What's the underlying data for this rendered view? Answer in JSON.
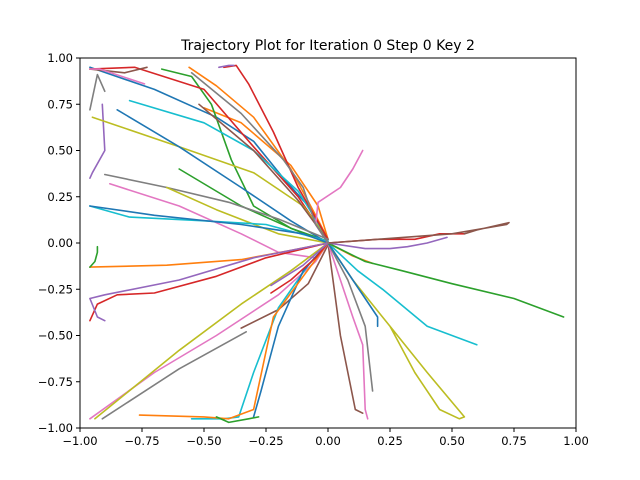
{
  "chart_data": {
    "type": "line",
    "title": "Trajectory Plot for Iteration 0 Step 0 Key 2",
    "xlabel": "",
    "ylabel": "",
    "xlim": [
      -1.0,
      1.0
    ],
    "ylim": [
      -1.0,
      1.0
    ],
    "x_ticks": [
      "−1.00",
      "−0.75",
      "−0.50",
      "−0.25",
      "0.00",
      "0.25",
      "0.50",
      "0.75",
      "1.00"
    ],
    "y_ticks": [
      "1.00",
      "0.75",
      "0.50",
      "0.25",
      "0.00",
      "−0.25",
      "−0.50",
      "−0.75",
      "−1.00"
    ],
    "grid": false,
    "colors": [
      "#1f77b4",
      "#ff7f0e",
      "#2ca02c",
      "#d62728",
      "#9467bd",
      "#8c564b",
      "#e377c2",
      "#7f7f7f",
      "#bcbd22",
      "#17becf"
    ],
    "series": [
      {
        "points": [
          [
            -0.96,
            0.95
          ],
          [
            -0.7,
            0.83
          ],
          [
            -0.45,
            0.68
          ],
          [
            -0.3,
            0.55
          ],
          [
            -0.18,
            0.35
          ],
          [
            -0.08,
            0.2
          ],
          [
            0.0,
            0.02
          ]
        ]
      },
      {
        "points": [
          [
            -0.5,
            0.73
          ],
          [
            -0.35,
            0.65
          ],
          [
            -0.15,
            0.42
          ],
          [
            -0.04,
            0.2
          ],
          [
            0.0,
            0.02
          ]
        ]
      },
      {
        "points": [
          [
            -0.67,
            0.94
          ],
          [
            -0.55,
            0.9
          ],
          [
            -0.47,
            0.75
          ],
          [
            -0.39,
            0.45
          ],
          [
            -0.3,
            0.2
          ],
          [
            -0.15,
            0.08
          ],
          [
            0.0,
            0.01
          ]
        ]
      },
      {
        "points": [
          [
            -0.96,
            0.94
          ],
          [
            -0.78,
            0.95
          ],
          [
            -0.5,
            0.83
          ],
          [
            -0.3,
            0.52
          ],
          [
            -0.12,
            0.25
          ],
          [
            0.0,
            0.01
          ]
        ]
      },
      {
        "points": [
          [
            -0.91,
            0.75
          ],
          [
            -0.9,
            0.5
          ],
          [
            -0.95,
            0.38
          ],
          [
            -0.96,
            0.35
          ]
        ]
      },
      {
        "points": [
          [
            -0.73,
            0.95
          ],
          [
            -0.82,
            0.92
          ],
          [
            -0.96,
            0.94
          ]
        ]
      },
      {
        "points": [
          [
            -0.96,
            0.94
          ],
          [
            -0.92,
            0.94
          ],
          [
            -0.74,
            0.86
          ]
        ]
      },
      {
        "points": [
          [
            -0.9,
            0.82
          ],
          [
            -0.93,
            0.91
          ],
          [
            -0.96,
            0.72
          ]
        ]
      },
      {
        "points": [
          [
            -0.95,
            0.68
          ],
          [
            -0.6,
            0.52
          ],
          [
            -0.3,
            0.38
          ],
          [
            -0.1,
            0.2
          ],
          [
            0.0,
            0.02
          ]
        ]
      },
      {
        "points": [
          [
            -0.8,
            0.77
          ],
          [
            -0.5,
            0.65
          ],
          [
            -0.3,
            0.5
          ],
          [
            -0.12,
            0.28
          ],
          [
            0.0,
            0.02
          ]
        ]
      },
      {
        "points": [
          [
            -0.85,
            0.72
          ],
          [
            -0.6,
            0.52
          ],
          [
            -0.35,
            0.3
          ],
          [
            -0.15,
            0.12
          ],
          [
            0.0,
            0.0
          ]
        ]
      },
      {
        "points": [
          [
            -0.56,
            0.95
          ],
          [
            -0.45,
            0.85
          ],
          [
            -0.3,
            0.68
          ],
          [
            -0.15,
            0.4
          ],
          [
            -0.05,
            0.15
          ],
          [
            0.0,
            0.02
          ]
        ]
      },
      {
        "points": [
          [
            -0.6,
            0.4
          ],
          [
            -0.35,
            0.2
          ],
          [
            -0.15,
            0.08
          ],
          [
            0.0,
            0.0
          ]
        ]
      },
      {
        "points": [
          [
            -0.42,
            0.95
          ],
          [
            -0.37,
            0.96
          ],
          [
            -0.32,
            0.86
          ],
          [
            -0.22,
            0.6
          ],
          [
            -0.12,
            0.3
          ],
          [
            0.0,
            0.02
          ]
        ]
      },
      {
        "points": [
          [
            -0.38,
            0.96
          ],
          [
            -0.4,
            0.96
          ],
          [
            -0.44,
            0.95
          ]
        ]
      },
      {
        "points": [
          [
            -0.52,
            0.75
          ],
          [
            -0.3,
            0.5
          ],
          [
            -0.12,
            0.23
          ],
          [
            0.0,
            0.01
          ]
        ]
      },
      {
        "points": [
          [
            -0.88,
            0.32
          ],
          [
            -0.6,
            0.2
          ],
          [
            -0.35,
            0.05
          ],
          [
            -0.2,
            -0.05
          ],
          [
            -0.05,
            -0.08
          ],
          [
            0.0,
            0.0
          ]
        ]
      },
      {
        "points": [
          [
            -0.9,
            0.37
          ],
          [
            -0.65,
            0.3
          ],
          [
            -0.4,
            0.22
          ],
          [
            -0.2,
            0.13
          ],
          [
            0.0,
            0.02
          ]
        ]
      },
      {
        "points": [
          [
            -0.65,
            0.3
          ],
          [
            -0.45,
            0.18
          ],
          [
            -0.2,
            0.05
          ],
          [
            0.0,
            0.0
          ]
        ]
      },
      {
        "points": [
          [
            -0.96,
            0.2
          ],
          [
            -0.8,
            0.14
          ],
          [
            -0.5,
            0.12
          ],
          [
            -0.25,
            0.1
          ],
          [
            0.0,
            0.01
          ]
        ]
      },
      {
        "points": [
          [
            -0.96,
            0.2
          ],
          [
            -0.7,
            0.15
          ],
          [
            -0.35,
            0.1
          ],
          [
            -0.1,
            0.05
          ],
          [
            0.0,
            0.0
          ]
        ]
      },
      {
        "points": [
          [
            -0.96,
            -0.13
          ],
          [
            -0.65,
            -0.12
          ],
          [
            -0.35,
            -0.09
          ],
          [
            -0.15,
            -0.04
          ],
          [
            0.0,
            0.0
          ]
        ]
      },
      {
        "points": [
          [
            -0.96,
            -0.13
          ],
          [
            -0.94,
            -0.1
          ],
          [
            -0.93,
            -0.05
          ],
          [
            -0.93,
            -0.02
          ]
        ]
      },
      {
        "points": [
          [
            -0.96,
            -0.42
          ],
          [
            -0.93,
            -0.33
          ],
          [
            -0.85,
            -0.28
          ],
          [
            -0.7,
            -0.27
          ],
          [
            -0.45,
            -0.18
          ],
          [
            -0.25,
            -0.08
          ],
          [
            0.0,
            0.0
          ]
        ]
      },
      {
        "points": [
          [
            -0.9,
            -0.42
          ],
          [
            -0.93,
            -0.4
          ],
          [
            -0.96,
            -0.3
          ],
          [
            -0.9,
            -0.28
          ],
          [
            -0.6,
            -0.2
          ],
          [
            -0.3,
            -0.08
          ],
          [
            0.0,
            0.0
          ]
        ]
      },
      {
        "points": [
          [
            -0.35,
            -0.46
          ],
          [
            -0.2,
            -0.36
          ],
          [
            -0.08,
            -0.22
          ],
          [
            0.0,
            -0.01
          ]
        ]
      },
      {
        "points": [
          [
            -0.96,
            -0.95
          ],
          [
            -0.7,
            -0.7
          ],
          [
            -0.45,
            -0.5
          ],
          [
            -0.2,
            -0.28
          ],
          [
            -0.05,
            -0.1
          ],
          [
            0.0,
            0.0
          ]
        ]
      },
      {
        "points": [
          [
            -0.91,
            -0.95
          ],
          [
            -0.6,
            -0.68
          ],
          [
            -0.33,
            -0.48
          ]
        ]
      },
      {
        "points": [
          [
            -0.94,
            -0.95
          ],
          [
            -0.6,
            -0.58
          ],
          [
            -0.35,
            -0.33
          ],
          [
            -0.15,
            -0.15
          ],
          [
            0.0,
            0.0
          ]
        ]
      },
      {
        "points": [
          [
            -0.55,
            -0.95
          ],
          [
            -0.42,
            -0.95
          ],
          [
            -0.36,
            -0.94
          ],
          [
            -0.3,
            -0.7
          ],
          [
            -0.2,
            -0.35
          ],
          [
            -0.08,
            -0.12
          ],
          [
            0.0,
            0.0
          ]
        ]
      },
      {
        "points": [
          [
            -0.3,
            -0.94
          ],
          [
            -0.27,
            -0.8
          ],
          [
            -0.2,
            -0.45
          ],
          [
            -0.1,
            -0.15
          ],
          [
            0.0,
            0.0
          ]
        ]
      },
      {
        "points": [
          [
            -0.76,
            -0.93
          ],
          [
            -0.5,
            -0.94
          ],
          [
            -0.4,
            -0.95
          ],
          [
            -0.3,
            -0.9
          ],
          [
            -0.22,
            -0.4
          ],
          [
            -0.1,
            -0.18
          ],
          [
            0.0,
            0.0
          ]
        ]
      },
      {
        "points": [
          [
            -0.28,
            -0.94
          ],
          [
            -0.32,
            -0.95
          ],
          [
            -0.4,
            -0.97
          ],
          [
            -0.45,
            -0.94
          ]
        ]
      },
      {
        "points": [
          [
            -0.23,
            -0.27
          ],
          [
            -0.15,
            -0.2
          ],
          [
            -0.05,
            -0.08
          ],
          [
            0.0,
            0.0
          ]
        ]
      },
      {
        "points": [
          [
            -0.23,
            -0.23
          ],
          [
            -0.1,
            -0.12
          ],
          [
            0.0,
            0.0
          ]
        ]
      },
      {
        "points": [
          [
            0.0,
            0.0
          ],
          [
            0.02,
            -0.2
          ],
          [
            0.05,
            -0.5
          ],
          [
            0.11,
            -0.9
          ],
          [
            0.14,
            -0.92
          ]
        ]
      },
      {
        "points": [
          [
            0.0,
            0.0
          ],
          [
            0.05,
            -0.2
          ],
          [
            0.1,
            -0.4
          ],
          [
            0.14,
            -0.55
          ],
          [
            0.15,
            -0.9
          ],
          [
            0.16,
            -0.95
          ]
        ]
      },
      {
        "points": [
          [
            0.0,
            0.0
          ],
          [
            0.08,
            -0.2
          ],
          [
            0.15,
            -0.45
          ],
          [
            0.18,
            -0.8
          ]
        ]
      },
      {
        "points": [
          [
            0.0,
            0.0
          ],
          [
            0.1,
            -0.2
          ],
          [
            0.25,
            -0.45
          ],
          [
            0.35,
            -0.7
          ],
          [
            0.45,
            -0.9
          ],
          [
            0.53,
            -0.95
          ],
          [
            0.55,
            -0.94
          ],
          [
            0.4,
            -0.7
          ],
          [
            0.25,
            -0.45
          ],
          [
            0.1,
            -0.2
          ],
          [
            0.0,
            0.0
          ]
        ]
      },
      {
        "points": [
          [
            0.0,
            0.0
          ],
          [
            0.12,
            -0.15
          ],
          [
            0.22,
            -0.25
          ],
          [
            0.4,
            -0.45
          ],
          [
            0.6,
            -0.55
          ]
        ]
      },
      {
        "points": [
          [
            0.0,
            0.0
          ],
          [
            0.1,
            -0.2
          ],
          [
            0.2,
            -0.4
          ],
          [
            0.2,
            -0.45
          ]
        ]
      },
      {
        "points": [
          [
            0.0,
            0.0
          ],
          [
            0.1,
            -0.07
          ],
          [
            0.18,
            -0.11
          ]
        ]
      },
      {
        "points": [
          [
            0.0,
            0.0
          ],
          [
            0.15,
            -0.1
          ],
          [
            0.3,
            -0.15
          ],
          [
            0.5,
            -0.22
          ],
          [
            0.75,
            -0.3
          ],
          [
            0.95,
            -0.4
          ]
        ]
      },
      {
        "points": [
          [
            0.0,
            0.0
          ],
          [
            0.2,
            0.02
          ],
          [
            0.35,
            0.02
          ],
          [
            0.45,
            0.05
          ],
          [
            0.55,
            0.05
          ]
        ]
      },
      {
        "points": [
          [
            0.0,
            0.0
          ],
          [
            0.15,
            -0.03
          ],
          [
            0.25,
            -0.03
          ],
          [
            0.32,
            -0.02
          ],
          [
            0.4,
            0.0
          ],
          [
            0.48,
            0.03
          ]
        ]
      },
      {
        "points": [
          [
            0.0,
            0.0
          ],
          [
            0.2,
            0.02
          ],
          [
            0.5,
            0.05
          ],
          [
            0.72,
            0.1
          ],
          [
            0.73,
            0.11
          ],
          [
            0.6,
            0.07
          ],
          [
            0.55,
            0.05
          ]
        ]
      },
      {
        "points": [
          [
            0.0,
            0.0
          ],
          [
            -0.05,
            0.1
          ],
          [
            -0.04,
            0.22
          ],
          [
            0.05,
            0.3
          ],
          [
            0.1,
            0.4
          ],
          [
            0.14,
            0.5
          ]
        ]
      },
      {
        "points": [
          [
            -0.55,
            0.92
          ],
          [
            -0.35,
            0.7
          ],
          [
            -0.18,
            0.45
          ],
          [
            -0.1,
            0.3
          ],
          [
            -0.05,
            0.1
          ],
          [
            0.0,
            0.0
          ]
        ]
      }
    ]
  }
}
